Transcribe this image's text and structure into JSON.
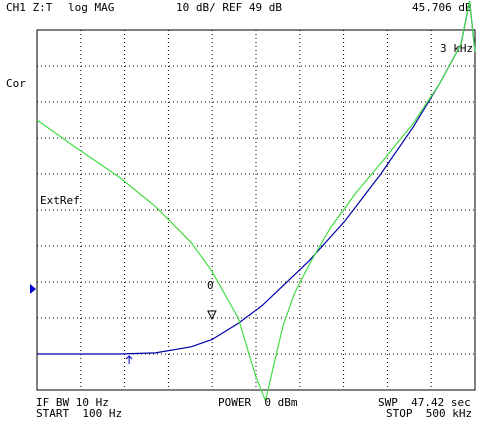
{
  "header": {
    "channel": "CH1 Z:T",
    "format": "log MAG",
    "scale": "10 dB/ REF 49 dB",
    "marker_value": "45.706 dB"
  },
  "annotations": {
    "marker_freq": "3 kHz",
    "cor": "Cor",
    "extref": "ExtRef",
    "marker_number": "0"
  },
  "footer": {
    "ifbw": "IF BW 10 Hz",
    "start": "START  100 Hz",
    "power": "POWER  0 dBm",
    "swp": "SWP  47.42 sec",
    "stop": "STOP  500 kHz"
  },
  "colors": {
    "trace_primary": "#0000aa",
    "trace_secondary": "#44dd44",
    "grid": "#000000",
    "marker": "#0000cc"
  },
  "chart_data": {
    "type": "line",
    "title": "",
    "xlabel": "",
    "ylabel": "",
    "x_scale": "log",
    "xlim": [
      100,
      500000
    ],
    "y_divisions": 10,
    "ylim": [
      -1,
      9
    ],
    "grid": true,
    "reference_division": 0.3,
    "marker": {
      "x": 3000,
      "y": 1.0,
      "label": "0"
    },
    "stimulus_marker_x": 600,
    "series": [
      {
        "name": "",
        "color": "#0000aa",
        "x": [
          100,
          200,
          500,
          1000,
          2000,
          3000,
          5000,
          8000,
          12000,
          20000,
          40000,
          80000,
          150000,
          250000,
          380000,
          450000,
          500000
        ],
        "y": [
          0.0,
          0.0,
          0.0,
          0.03,
          0.2,
          0.4,
          0.85,
          1.35,
          1.9,
          2.6,
          3.7,
          5.0,
          6.3,
          7.5,
          8.6,
          9.8,
          8.4
        ]
      },
      {
        "name": "",
        "color": "#44dd44",
        "x": [
          100,
          200,
          500,
          1000,
          2000,
          3000,
          5000,
          7000,
          8500,
          10000,
          12000,
          15000,
          20000,
          30000,
          50000,
          80000,
          150000,
          250000,
          380000,
          450000,
          500000
        ],
        "y": [
          6.5,
          5.8,
          4.9,
          4.1,
          3.1,
          2.3,
          1.0,
          -0.6,
          -1.3,
          -0.3,
          0.8,
          1.7,
          2.5,
          3.5,
          4.5,
          5.3,
          6.4,
          7.5,
          8.6,
          9.8,
          8.4
        ]
      }
    ]
  }
}
